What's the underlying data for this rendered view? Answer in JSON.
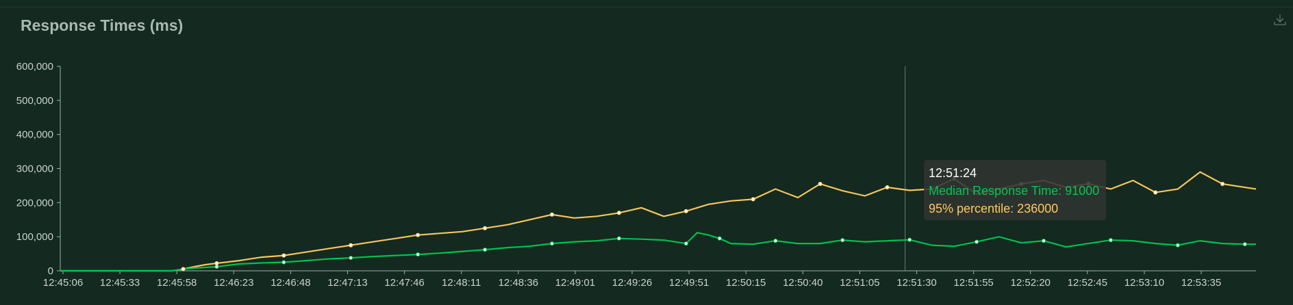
{
  "header": {
    "title": "Response Times (ms)"
  },
  "icons": {
    "download": "download-icon"
  },
  "colors": {
    "median": "#00c04f",
    "p95": "#f6c55f",
    "axis": "#9fb2a9",
    "crosshair": "#9fb2a9"
  },
  "tooltip": {
    "time": "12:51:24",
    "median_label": "Median Response Time: 91000",
    "p95_label": "95% percentile: 236000"
  },
  "chart_data": {
    "type": "line",
    "title": "Response Times (ms)",
    "ylim": [
      0,
      600000
    ],
    "yticks": [
      0,
      100000,
      200000,
      300000,
      400000,
      500000,
      600000
    ],
    "ytick_labels": [
      "0",
      "100,000",
      "200,000",
      "300,000",
      "400,000",
      "500,000",
      "600,000"
    ],
    "xtick_labels": [
      "12:45:06",
      "12:45:33",
      "12:45:58",
      "12:46:23",
      "12:46:48",
      "12:47:13",
      "12:47:46",
      "12:48:11",
      "12:48:36",
      "12:49:01",
      "12:49:26",
      "12:49:51",
      "12:50:15",
      "12:50:40",
      "12:51:05",
      "12:51:30",
      "12:51:55",
      "12:52:20",
      "12:52:45",
      "12:53:10",
      "12:53:35"
    ],
    "x_range_seconds": [
      0,
      535
    ],
    "crosshair_seconds": 378,
    "series": [
      {
        "name": "Median Response Time",
        "x": [
          0,
          10,
          20,
          30,
          40,
          50,
          55,
          60,
          65,
          70,
          80,
          90,
          100,
          110,
          120,
          130,
          140,
          150,
          160,
          170,
          180,
          190,
          200,
          210,
          220,
          230,
          240,
          250,
          260,
          270,
          280,
          285,
          290,
          295,
          300,
          310,
          320,
          330,
          340,
          350,
          360,
          370,
          380,
          390,
          400,
          410,
          420,
          430,
          440,
          450,
          460,
          470,
          480,
          490,
          500,
          510,
          520,
          530,
          535
        ],
        "y": [
          0,
          0,
          0,
          0,
          0,
          0,
          5000,
          8000,
          10000,
          12000,
          20000,
          23000,
          25000,
          30000,
          35000,
          38000,
          42000,
          45000,
          48000,
          52000,
          57000,
          62000,
          68000,
          72000,
          80000,
          85000,
          88000,
          95000,
          93000,
          90000,
          80000,
          112000,
          105000,
          95000,
          80000,
          78000,
          88000,
          80000,
          80000,
          90000,
          85000,
          88000,
          91000,
          75000,
          72000,
          85000,
          100000,
          82000,
          88000,
          70000,
          80000,
          90000,
          88000,
          80000,
          75000,
          88000,
          80000,
          78000,
          78000
        ]
      },
      {
        "name": "95% percentile",
        "x": [
          0,
          10,
          20,
          30,
          40,
          50,
          55,
          60,
          65,
          70,
          80,
          90,
          100,
          110,
          120,
          130,
          140,
          150,
          160,
          170,
          180,
          190,
          200,
          210,
          220,
          230,
          240,
          250,
          260,
          270,
          280,
          290,
          300,
          310,
          320,
          330,
          340,
          350,
          360,
          370,
          380,
          390,
          400,
          410,
          420,
          430,
          440,
          450,
          460,
          470,
          480,
          490,
          500,
          510,
          520,
          530,
          535
        ],
        "y": [
          0,
          0,
          0,
          0,
          0,
          0,
          5000,
          12000,
          18000,
          22000,
          30000,
          40000,
          45000,
          55000,
          65000,
          75000,
          85000,
          95000,
          105000,
          110000,
          115000,
          125000,
          135000,
          150000,
          165000,
          155000,
          160000,
          170000,
          185000,
          160000,
          175000,
          195000,
          205000,
          210000,
          240000,
          215000,
          255000,
          235000,
          220000,
          245000,
          236000,
          240000,
          270000,
          225000,
          240000,
          255000,
          265000,
          245000,
          255000,
          240000,
          265000,
          230000,
          240000,
          290000,
          255000,
          245000,
          240000
        ]
      }
    ]
  }
}
